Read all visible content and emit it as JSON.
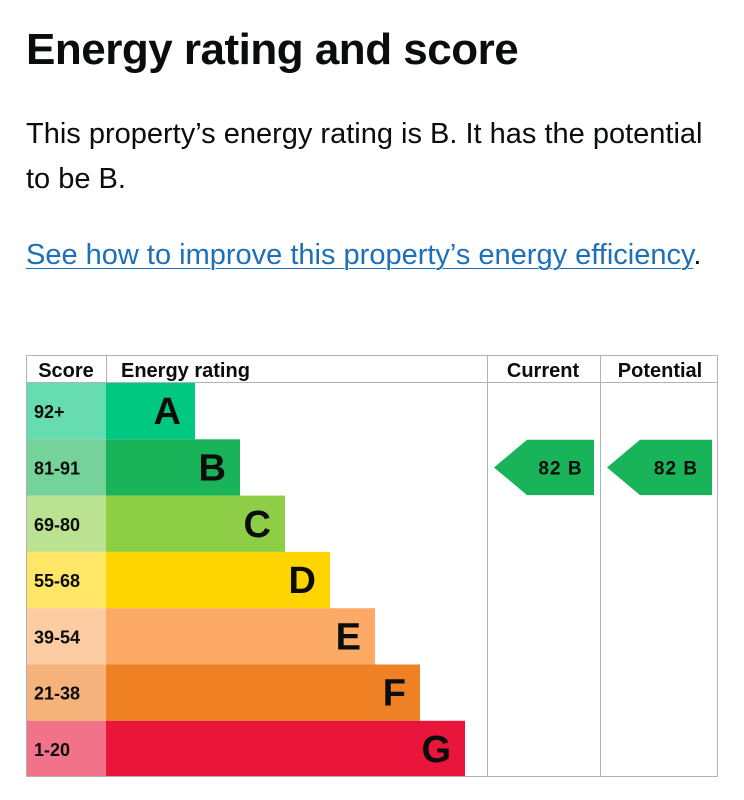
{
  "title": "Energy rating and score",
  "summary": "This property’s energy rating is B. It has the potential to be B.",
  "improve_link": "See how to improve this property’s energy efficiency",
  "improve_suffix": ".",
  "table": {
    "headers": {
      "score": "Score",
      "rating": "Energy rating",
      "current": "Current",
      "potential": "Potential"
    },
    "bands": [
      {
        "score": "92+",
        "letter": "A",
        "color": "#00c781",
        "score_bg": "#66dcb0"
      },
      {
        "score": "81-91",
        "letter": "B",
        "color": "#19b459",
        "score_bg": "#75d29b"
      },
      {
        "score": "69-80",
        "letter": "C",
        "color": "#8dce46",
        "score_bg": "#bbe290"
      },
      {
        "score": "55-68",
        "letter": "D",
        "color": "#ffd500",
        "score_bg": "#ffe666"
      },
      {
        "score": "39-54",
        "letter": "E",
        "color": "#fcaa65",
        "score_bg": "#fdcca3"
      },
      {
        "score": "21-38",
        "letter": "F",
        "color": "#ef8023",
        "score_bg": "#f5b37b"
      },
      {
        "score": "1-20",
        "letter": "G",
        "color": "#e9153b",
        "score_bg": "#f27389"
      }
    ],
    "current": {
      "value": 82,
      "letter": "B",
      "label": "82 B"
    },
    "potential": {
      "value": 82,
      "letter": "B",
      "label": "82 B"
    }
  }
}
